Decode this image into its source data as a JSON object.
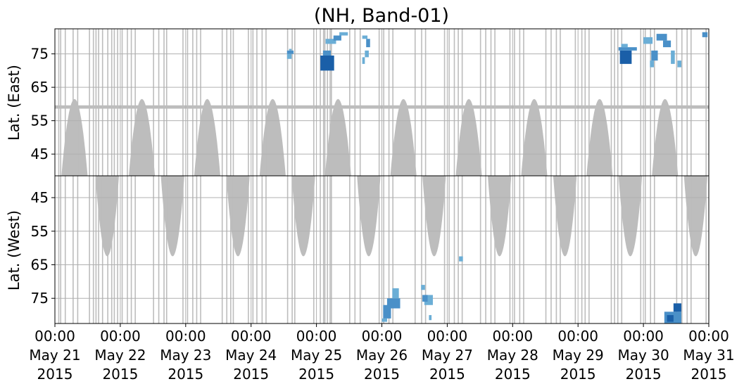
{
  "chart_data": {
    "type": "heatmap",
    "title": "(NH, Band-01)",
    "panels": [
      {
        "name": "east",
        "ylabel": "Lat. (East)",
        "yticks": [
          45,
          55,
          65,
          75
        ],
        "ylim": [
          38.5,
          82.5
        ],
        "inverted": false
      },
      {
        "name": "west",
        "ylabel": "Lat. (West)",
        "yticks": [
          75,
          65,
          55,
          45
        ],
        "ylim": [
          38.5,
          82.5
        ],
        "inverted": true
      }
    ],
    "xlim": [
      0,
      10
    ],
    "xticks": [
      {
        "time": "00:00",
        "date": "May 21",
        "year": "2015"
      },
      {
        "time": "00:00",
        "date": "May 22",
        "year": "2015"
      },
      {
        "time": "00:00",
        "date": "May 23",
        "year": "2015"
      },
      {
        "time": "00:00",
        "date": "May 24",
        "year": "2015"
      },
      {
        "time": "00:00",
        "date": "May 25",
        "year": "2015"
      },
      {
        "time": "00:00",
        "date": "May 26",
        "year": "2015"
      },
      {
        "time": "00:00",
        "date": "May 27",
        "year": "2015"
      },
      {
        "time": "00:00",
        "date": "May 28",
        "year": "2015"
      },
      {
        "time": "00:00",
        "date": "May 29",
        "year": "2015"
      },
      {
        "time": "00:00",
        "date": "May 30",
        "year": "2015"
      },
      {
        "time": "00:00",
        "date": "May 31",
        "year": "2015"
      }
    ],
    "grid": true,
    "colors": {
      "nodata": "#bdbdbd",
      "low": "#6baed6",
      "mid": "#4a90c8",
      "high": "#1a5fa8",
      "grid": "#b0b0b0"
    },
    "nodata_bands": {
      "east_lobe_centers": [
        0.3,
        1.33,
        2.33,
        3.33,
        4.33,
        5.33,
        6.33,
        7.33,
        8.33,
        9.33
      ],
      "east_lobe_half_width": 0.2,
      "east_lobe_min_lat": 61.5,
      "west_lobe_centers": [
        0.8,
        1.8,
        2.8,
        3.8,
        4.8,
        5.8,
        6.8,
        7.8,
        8.8,
        9.8
      ],
      "west_lobe_half_width": 0.18,
      "west_lobe_max_lat": 62.5,
      "east_constant_band_lat": [
        58.6,
        59.6
      ],
      "vertical_lines": [
        0.05,
        0.08,
        0.15,
        0.27,
        0.34,
        0.52,
        0.58,
        0.62,
        0.66,
        0.72,
        0.8,
        0.86,
        0.9,
        0.95,
        1.02,
        1.1,
        1.16,
        1.22,
        1.5,
        1.58,
        1.66,
        1.7,
        1.95,
        2.02,
        2.1,
        2.16,
        2.22,
        2.55,
        2.62,
        2.68,
        2.72,
        2.95,
        3.02,
        3.08,
        3.16,
        3.22,
        3.55,
        3.62,
        3.66,
        3.95,
        4.05,
        4.1,
        4.12,
        4.16,
        4.2,
        4.22,
        4.5,
        4.58,
        4.66,
        4.95,
        5.02,
        5.1,
        5.16,
        5.5,
        5.6,
        5.66,
        5.95,
        6.02,
        6.1,
        6.16,
        6.22,
        6.5,
        6.58,
        6.66,
        6.72,
        6.95,
        7.02,
        7.1,
        7.16,
        7.5,
        7.58,
        7.66,
        7.72,
        7.95,
        8.05,
        8.1,
        8.16,
        8.5,
        8.55,
        8.6,
        8.66,
        8.95,
        9.02,
        9.1,
        9.16,
        9.5,
        9.58,
        9.66,
        9.72,
        9.95
      ]
    },
    "blobs": [
      {
        "panel": "east",
        "x": [
          3.55,
          3.62
        ],
        "lat": [
          73.5,
          75
        ],
        "level": "low"
      },
      {
        "panel": "east",
        "x": [
          3.55,
          3.65
        ],
        "lat": [
          75,
          76
        ],
        "level": "mid"
      },
      {
        "panel": "east",
        "x": [
          3.58,
          3.62
        ],
        "lat": [
          76,
          76.5
        ],
        "level": "low"
      },
      {
        "panel": "east",
        "x": [
          4.06,
          4.27
        ],
        "lat": [
          70,
          74.5
        ],
        "level": "high"
      },
      {
        "panel": "east",
        "x": [
          4.1,
          4.22
        ],
        "lat": [
          74.5,
          76
        ],
        "level": "mid"
      },
      {
        "panel": "east",
        "x": [
          4.14,
          4.3
        ],
        "lat": [
          78,
          79.5
        ],
        "level": "low"
      },
      {
        "panel": "east",
        "x": [
          4.26,
          4.38
        ],
        "lat": [
          79,
          80.5
        ],
        "level": "mid"
      },
      {
        "panel": "east",
        "x": [
          4.35,
          4.48
        ],
        "lat": [
          80.5,
          81.5
        ],
        "level": "low"
      },
      {
        "panel": "east",
        "x": [
          4.7,
          4.74
        ],
        "lat": [
          72,
          74
        ],
        "level": "low"
      },
      {
        "panel": "east",
        "x": [
          4.74,
          4.8
        ],
        "lat": [
          74,
          76
        ],
        "level": "low"
      },
      {
        "panel": "east",
        "x": [
          4.76,
          4.82
        ],
        "lat": [
          77,
          79.5
        ],
        "level": "mid"
      },
      {
        "panel": "east",
        "x": [
          4.7,
          4.78
        ],
        "lat": [
          79.5,
          80.5
        ],
        "level": "low"
      },
      {
        "panel": "east",
        "x": [
          8.64,
          8.82
        ],
        "lat": [
          72,
          76
        ],
        "level": "high"
      },
      {
        "panel": "east",
        "x": [
          8.62,
          8.9
        ],
        "lat": [
          76,
          77
        ],
        "level": "mid"
      },
      {
        "panel": "east",
        "x": [
          8.66,
          8.76
        ],
        "lat": [
          77,
          78
        ],
        "level": "low"
      },
      {
        "panel": "east",
        "x": [
          9.1,
          9.16
        ],
        "lat": [
          71,
          73
        ],
        "level": "low"
      },
      {
        "panel": "east",
        "x": [
          9.12,
          9.22
        ],
        "lat": [
          73,
          76
        ],
        "level": "mid"
      },
      {
        "panel": "east",
        "x": [
          9.0,
          9.14
        ],
        "lat": [
          78,
          80
        ],
        "level": "low"
      },
      {
        "panel": "east",
        "x": [
          9.3,
          9.42
        ],
        "lat": [
          77,
          79
        ],
        "level": "mid"
      },
      {
        "panel": "east",
        "x": [
          9.42,
          9.48
        ],
        "lat": [
          72,
          76
        ],
        "level": "low"
      },
      {
        "panel": "east",
        "x": [
          9.52,
          9.58
        ],
        "lat": [
          71,
          73
        ],
        "level": "low"
      },
      {
        "panel": "east",
        "x": [
          9.2,
          9.36
        ],
        "lat": [
          79,
          81
        ],
        "level": "mid"
      },
      {
        "panel": "east",
        "x": [
          9.9,
          9.98
        ],
        "lat": [
          80,
          81.5
        ],
        "level": "mid"
      },
      {
        "panel": "west",
        "x": [
          5.0,
          5.08
        ],
        "lat": [
          81,
          82
        ],
        "level": "low"
      },
      {
        "panel": "west",
        "x": [
          5.02,
          5.14
        ],
        "lat": [
          77,
          81
        ],
        "level": "mid"
      },
      {
        "panel": "west",
        "x": [
          5.08,
          5.28
        ],
        "lat": [
          75,
          78
        ],
        "level": "mid"
      },
      {
        "panel": "west",
        "x": [
          5.16,
          5.26
        ],
        "lat": [
          72,
          75
        ],
        "level": "low"
      },
      {
        "panel": "west",
        "x": [
          5.6,
          5.66
        ],
        "lat": [
          71,
          72.5
        ],
        "level": "low"
      },
      {
        "panel": "west",
        "x": [
          5.65,
          5.78
        ],
        "lat": [
          74,
          77
        ],
        "level": "low"
      },
      {
        "panel": "west",
        "x": [
          5.72,
          5.76
        ],
        "lat": [
          80,
          81.5
        ],
        "level": "low"
      },
      {
        "panel": "west",
        "x": [
          5.62,
          5.7
        ],
        "lat": [
          74,
          76
        ],
        "level": "mid"
      },
      {
        "panel": "west",
        "x": [
          6.18,
          6.24
        ],
        "lat": [
          62.5,
          64
        ],
        "level": "low"
      },
      {
        "panel": "west",
        "x": [
          9.32,
          9.58
        ],
        "lat": [
          79,
          82.5
        ],
        "level": "mid"
      },
      {
        "panel": "west",
        "x": [
          9.46,
          9.58
        ],
        "lat": [
          76.5,
          79
        ],
        "level": "high"
      },
      {
        "panel": "west",
        "x": [
          9.36,
          9.46
        ],
        "lat": [
          80,
          82
        ],
        "level": "high"
      }
    ]
  }
}
